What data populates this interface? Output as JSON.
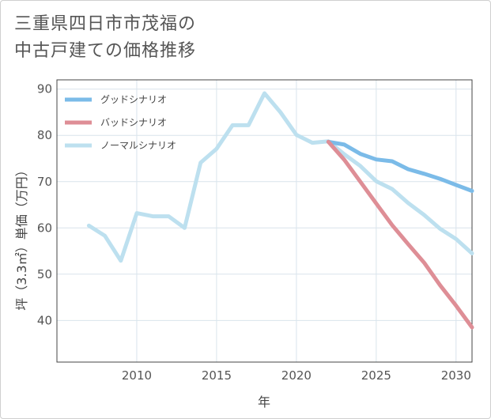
{
  "chart_data": {
    "type": "line",
    "title_lines": [
      "三重県四日市市茂福の",
      "中古戸建ての価格推移"
    ],
    "xlabel": "年",
    "ylabel": "坪（3.3㎡）単価（万円）",
    "xlim": [
      2005,
      2031
    ],
    "ylim": [
      31,
      92
    ],
    "xticks": [
      2010,
      2015,
      2020,
      2025,
      2030
    ],
    "yticks": [
      40,
      50,
      60,
      70,
      80,
      90
    ],
    "grid": true,
    "legend_position": "top-left",
    "series": [
      {
        "name": "グッドシナリオ",
        "color": "#7bbbe8",
        "x": [
          2022,
          2023,
          2024,
          2025,
          2026,
          2027,
          2028,
          2029,
          2030,
          2031
        ],
        "y": [
          78.6,
          78.0,
          76.0,
          74.8,
          74.4,
          72.7,
          71.7,
          70.6,
          69.3,
          68.0
        ]
      },
      {
        "name": "バッドシナリオ",
        "color": "#de8e96",
        "x": [
          2022,
          2023,
          2024,
          2025,
          2026,
          2027,
          2028,
          2029,
          2030,
          2031
        ],
        "y": [
          78.6,
          74.7,
          70.0,
          65.3,
          60.6,
          56.5,
          52.5,
          47.6,
          43.2,
          38.5
        ]
      },
      {
        "name": "ノーマルシナリオ",
        "color": "#bde0ef",
        "x": [
          2007,
          2008,
          2009,
          2010,
          2011,
          2012,
          2013,
          2014,
          2015,
          2016,
          2017,
          2018,
          2019,
          2020,
          2021,
          2022,
          2023,
          2024,
          2025,
          2026,
          2027,
          2028,
          2029,
          2030,
          2031
        ],
        "y": [
          60.5,
          58.3,
          52.9,
          63.2,
          62.5,
          62.5,
          60.0,
          74.1,
          77.1,
          82.2,
          82.2,
          89.1,
          85.0,
          80.1,
          78.4,
          78.7,
          75.9,
          73.4,
          70.1,
          68.4,
          65.4,
          62.8,
          59.8,
          57.6,
          54.5
        ]
      }
    ]
  }
}
